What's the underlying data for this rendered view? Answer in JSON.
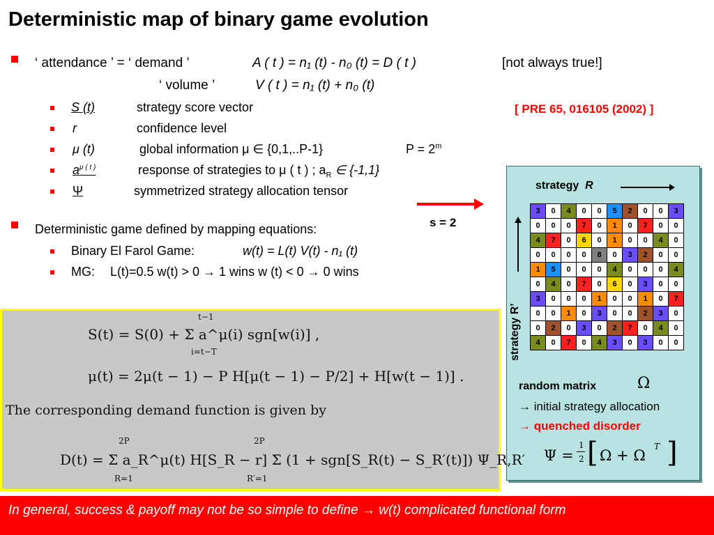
{
  "title": "Deterministic map of binary game evolution",
  "line1": {
    "attendance": "‘ attendance ’  = ‘ demand ’",
    "formula": "A ( t )  =  n₁ (t) - n₀ (t)  =  D ( t )",
    "note": "[not always true!]"
  },
  "line2": {
    "volume": "‘ volume ’",
    "formula": "V ( t ) =   n₁ (t) + n₀ (t)"
  },
  "reference": "[ PRE  65, 016105 (2002) ]",
  "subitems": [
    {
      "sym": "S (t)",
      "desc": "strategy score vector"
    },
    {
      "sym": "r",
      "desc": "confidence level"
    },
    {
      "sym": "μ   (t)",
      "desc": "global information μ ∈ {0,1,..P-1}",
      "extra": "P = 2",
      "extra_sup": "m"
    },
    {
      "sym": "a",
      "sym_sup": "μ ( t )",
      "desc": "response of strategies to μ ( t ) ;   a",
      "desc_sub": "R",
      "desc_tail": " ∈ {-1,1}"
    },
    {
      "sym": "Ψ",
      "desc": "symmetrized strategy allocation tensor"
    }
  ],
  "s_label": "s = 2",
  "bullet2": "Deterministic game defined by mapping equations:",
  "bullet2_items": [
    {
      "label": "Binary El Farol Game:",
      "eq": "w(t) =  L(t) V(t) - n₁ (t)"
    },
    {
      "label": "MG:",
      "eq": "L(t)=0.5  w(t) > 0 → 1 wins     w (t) < 0 → 0 wins"
    }
  ],
  "panel": {
    "strategy_r": "strategy",
    "strategy_r_sym": "R",
    "strategy_rp": "strategy  R’",
    "random_matrix": "random matrix",
    "omega": "Ω",
    "line_initial": "→  initial strategy allocation",
    "line_quenched": "→  quenched disorder",
    "psi_eq_lhs": "Ψ =",
    "psi_half_num": "1",
    "psi_half_den": "2",
    "psi_rhs": "Ω  +  Ω",
    "psi_sup": "T"
  },
  "matrix": [
    [
      3,
      0,
      4,
      0,
      0,
      5,
      2,
      0,
      0,
      3
    ],
    [
      0,
      0,
      0,
      7,
      0,
      1,
      0,
      7,
      0,
      0
    ],
    [
      4,
      7,
      0,
      6,
      0,
      1,
      0,
      0,
      4,
      0
    ],
    [
      0,
      0,
      0,
      0,
      8,
      0,
      3,
      2,
      0,
      0
    ],
    [
      1,
      5,
      0,
      0,
      0,
      4,
      0,
      0,
      0,
      4
    ],
    [
      0,
      4,
      0,
      7,
      0,
      6,
      0,
      3,
      0,
      0
    ],
    [
      3,
      0,
      0,
      0,
      1,
      0,
      0,
      1,
      0,
      7
    ],
    [
      0,
      0,
      1,
      0,
      3,
      0,
      0,
      2,
      3,
      0
    ],
    [
      0,
      2,
      0,
      3,
      0,
      2,
      7,
      0,
      4,
      0
    ],
    [
      4,
      0,
      7,
      0,
      4,
      3,
      0,
      3,
      0,
      0
    ]
  ],
  "cell_colors": {
    "0": "#ffffff",
    "1": "#ff8c00",
    "2": "#a0522d",
    "3": "#6b4cff",
    "4": "#7a8c1e",
    "5": "#1e90ff",
    "6": "#ffd700",
    "7": "#ff2020",
    "8": "#808080"
  },
  "equations": {
    "eq1": "S(t) = S(0) + Σ a^μ(i) sgn[w(i)] ,",
    "eq1_top": "t−1",
    "eq1_bottom": "i=t−T",
    "eq2": "μ(t) = 2μ(t − 1) − P H[μ(t − 1) − P/2] + H[w(t − 1)] .",
    "text": "The corresponding demand function is given by",
    "eq3": "D(t) = Σ a_R^μ(t) H[S_R − r] Σ (1 + sgn[S_R(t) − S_R′(t)]) Ψ_R,R′",
    "eq3_top": "2P",
    "eq3_bot1": "R=1",
    "eq3_bot2": "R′=1"
  },
  "footer": "In general, success & payoff may not be so simple to define → w(t) complicated functional form"
}
